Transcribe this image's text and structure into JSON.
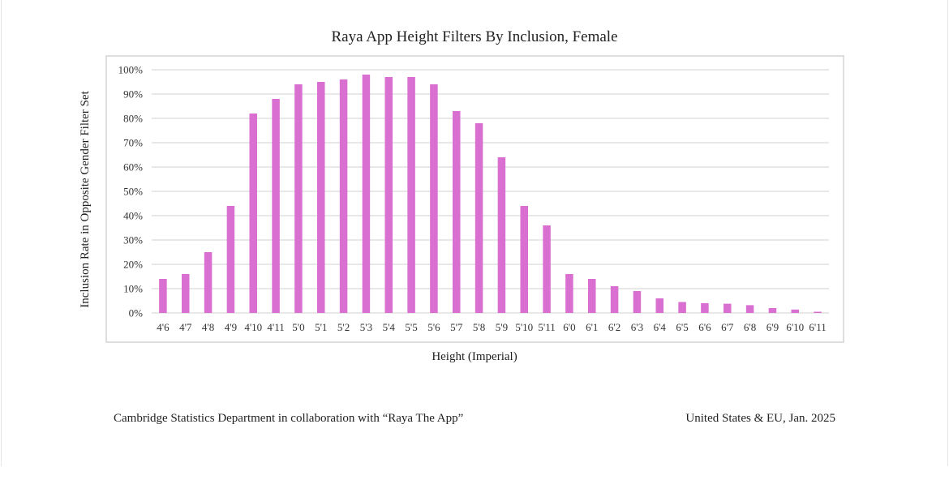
{
  "chart_data": {
    "type": "bar",
    "title": "Raya App Height Filters By Inclusion, Female",
    "xlabel": "Height (Imperial)",
    "ylabel": "Inclusion Rate in Opposite Gender Filter Set",
    "categories": [
      "4'6",
      "4'7",
      "4'8",
      "4'9",
      "4'10",
      "4'11",
      "5'0",
      "5'1",
      "5'2",
      "5'3",
      "5'4",
      "5'5",
      "5'6",
      "5'7",
      "5'8",
      "5'9",
      "5'10",
      "5'11",
      "6'0",
      "6'1",
      "6'2",
      "6'3",
      "6'4",
      "6'5",
      "6'6",
      "6'7",
      "6'8",
      "6'9",
      "6'10",
      "6'11"
    ],
    "values": [
      14,
      16,
      25,
      44,
      82,
      88,
      94,
      95,
      96,
      98,
      97,
      97,
      94,
      83,
      78,
      64,
      44,
      36,
      16,
      14,
      11,
      9,
      6,
      4.5,
      4,
      3.8,
      3.2,
      2,
      1.4,
      0.5
    ],
    "y_ticks": [
      "0%",
      "10%",
      "20%",
      "30%",
      "40%",
      "50%",
      "60%",
      "70%",
      "80%",
      "90%",
      "100%"
    ],
    "ylim": [
      0,
      100
    ],
    "grid": true,
    "bar_color": "#d96fd1"
  },
  "footer": {
    "left": "Cambridge Statistics Department in collaboration with “Raya The App”",
    "right": "United States & EU, Jan. 2025"
  }
}
